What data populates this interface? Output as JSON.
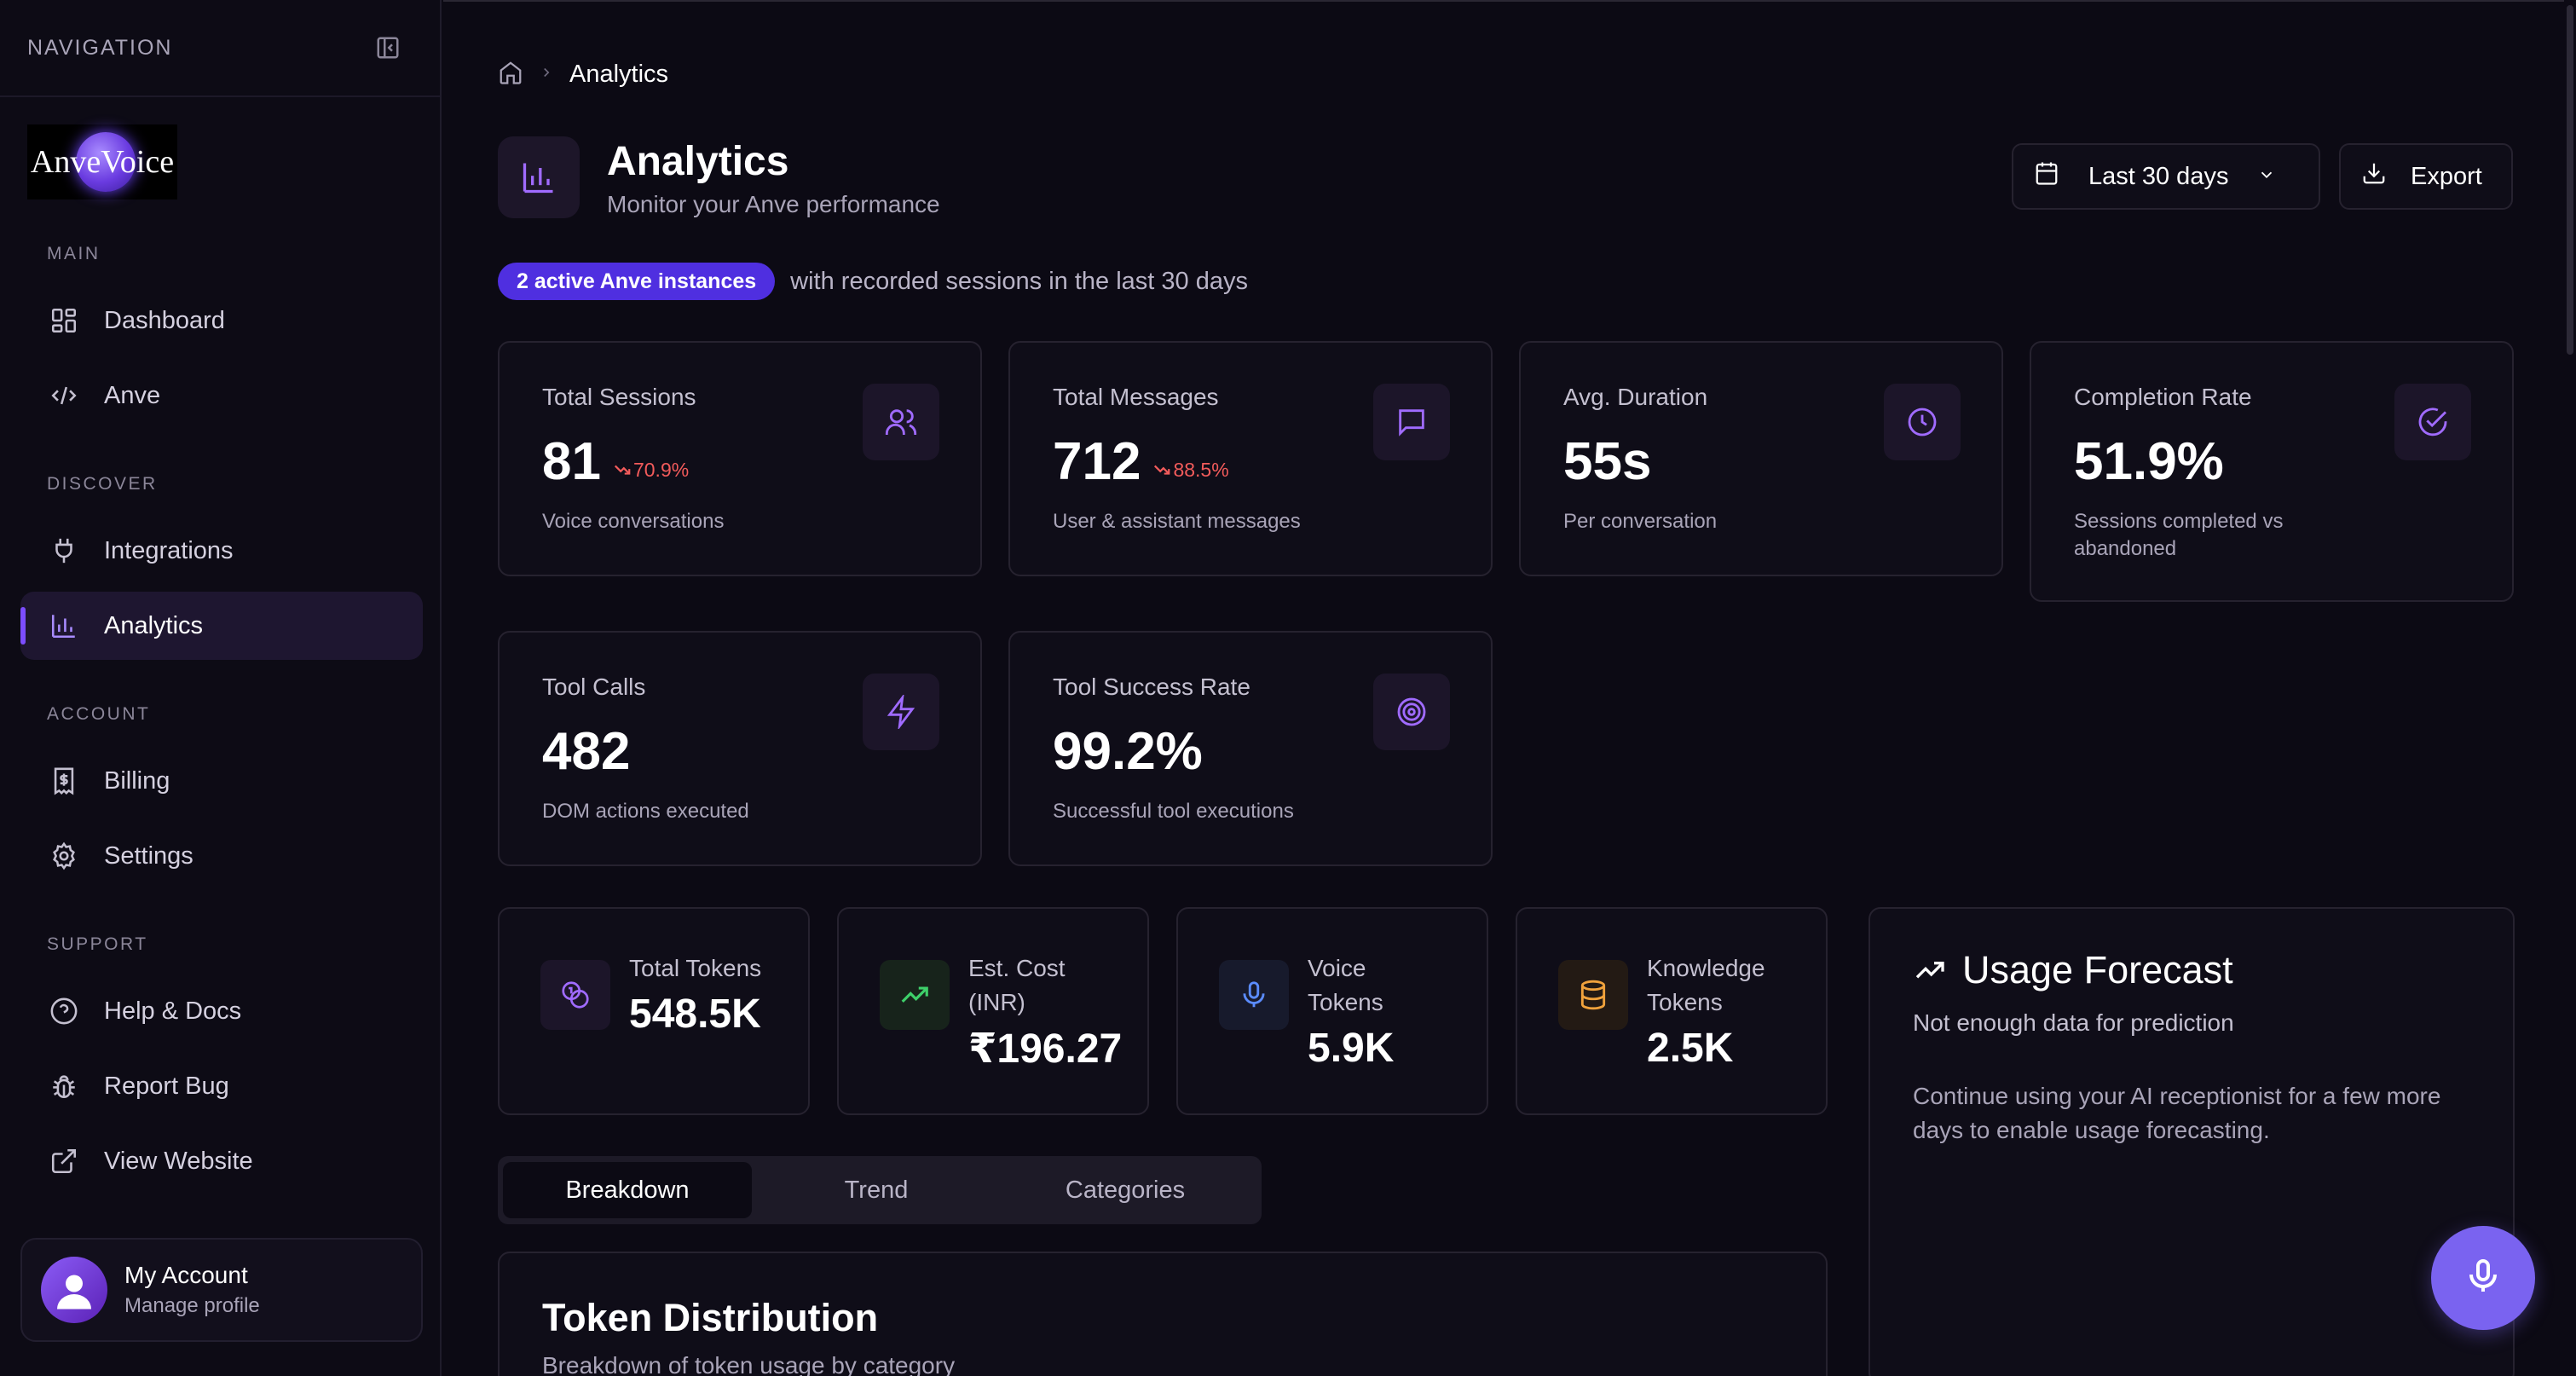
{
  "sidebar": {
    "title": "NAVIGATION",
    "logo_text": "AnveVoice",
    "sections": {
      "main": "MAIN",
      "discover": "DISCOVER",
      "account": "ACCOUNT",
      "support": "SUPPORT"
    },
    "items": {
      "dashboard": "Dashboard",
      "anve": "Anve",
      "integrations": "Integrations",
      "analytics": "Analytics",
      "billing": "Billing",
      "settings": "Settings",
      "help": "Help & Docs",
      "report_bug": "Report Bug",
      "view_website": "View Website"
    },
    "account": {
      "name": "My Account",
      "subtitle": "Manage profile"
    }
  },
  "breadcrumb": {
    "current": "Analytics"
  },
  "header": {
    "title": "Analytics",
    "subtitle": "Monitor your Anve performance",
    "range_label": "Last 30 days",
    "export_label": "Export"
  },
  "badge": {
    "label": "2 active Anve instances",
    "text": "with recorded sessions in the last 30 days"
  },
  "stats": {
    "sessions": {
      "label": "Total Sessions",
      "value": "81",
      "change": "70.9%",
      "desc": "Voice conversations"
    },
    "messages": {
      "label": "Total Messages",
      "value": "712",
      "change": "88.5%",
      "desc": "User & assistant messages"
    },
    "duration": {
      "label": "Avg. Duration",
      "value": "55s",
      "desc": "Per conversation"
    },
    "completion": {
      "label": "Completion Rate",
      "value": "51.9%",
      "desc": "Sessions completed vs abandoned"
    },
    "tool_calls": {
      "label": "Tool Calls",
      "value": "482",
      "desc": "DOM actions executed"
    },
    "tool_success": {
      "label": "Tool Success Rate",
      "value": "99.2%",
      "desc": "Successful tool executions"
    }
  },
  "tokens": {
    "total": {
      "label": "Total Tokens",
      "value": "548.5K"
    },
    "cost": {
      "label": "Est. Cost (INR)",
      "value": "₹196.27"
    },
    "voice": {
      "label": "Voice Tokens",
      "value": "5.9K"
    },
    "knowledge": {
      "label": "Knowledge Tokens",
      "value": "2.5K"
    }
  },
  "forecast": {
    "title": "Usage Forecast",
    "subtitle": "Not enough data for prediction",
    "body": "Continue using your AI receptionist for a few more days to enable usage forecasting."
  },
  "tabs": [
    "Breakdown",
    "Trend",
    "Categories"
  ],
  "distribution": {
    "title": "Token Distribution",
    "subtitle": "Breakdown of token usage by category"
  },
  "colors": {
    "accent": "#7c4dff",
    "badge": "#4f2fe0",
    "negative": "#f25b5b",
    "positive": "#3ecf6a",
    "voice": "#5b8cff",
    "knowledge": "#f0a23c"
  }
}
